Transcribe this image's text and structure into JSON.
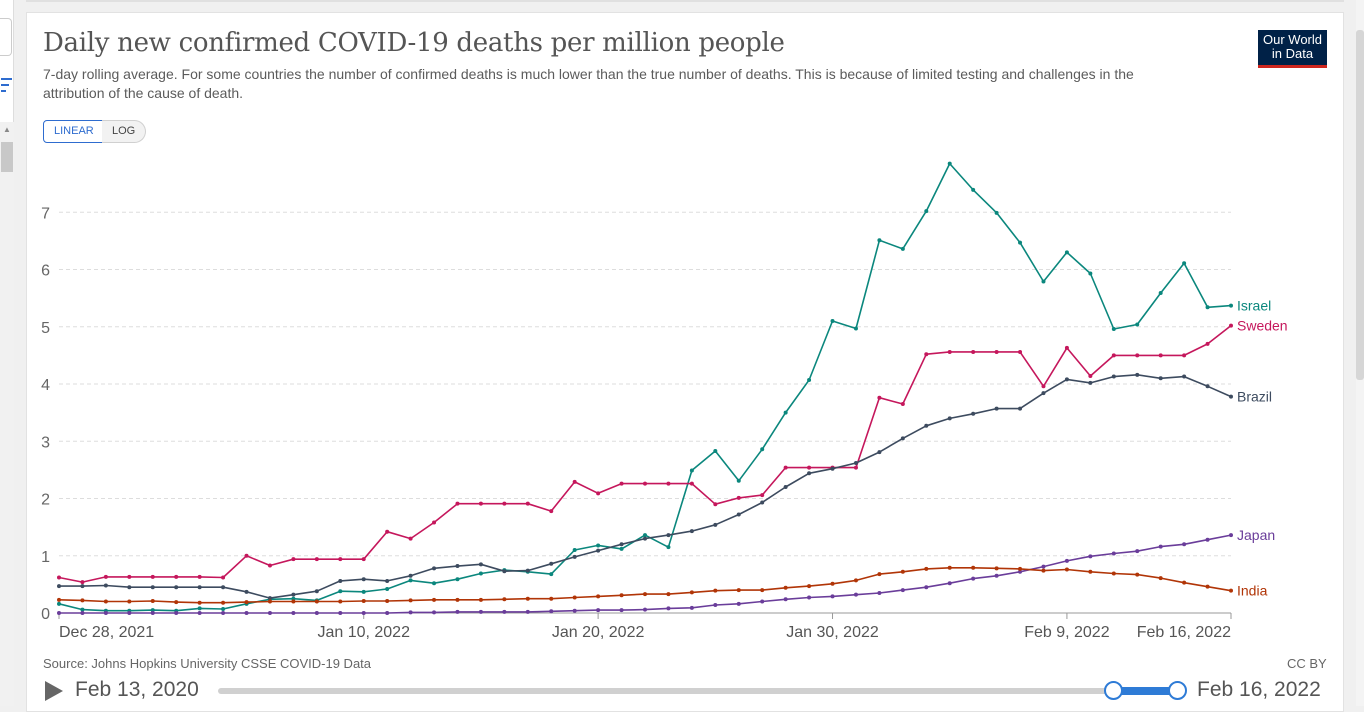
{
  "header": {
    "title": "Daily new confirmed COVID-19 deaths per million people",
    "subtitle": "7-day rolling average. For some countries the number of confirmed deaths is much lower than the true number of deaths. This is because of limited testing and challenges in the attribution of the cause of death.",
    "logo_line1": "Our World",
    "logo_line2": "in Data"
  },
  "scale_toggle": {
    "linear_label": "LINEAR",
    "log_label": "LOG",
    "selected": "LINEAR"
  },
  "footer": {
    "source": "Source: Johns Hopkins University CSSE COVID-19 Data",
    "license": "CC BY"
  },
  "timeline": {
    "start_label": "Feb 13, 2020",
    "end_label": "Feb 16, 2022",
    "selection_start_fraction": 0.932,
    "selection_end_fraction": 1.0
  },
  "colors": {
    "Israel": "#0b877d",
    "Sweden": "#c5175c",
    "Brazil": "#3d4b5f",
    "Japan": "#6a3d9a",
    "India": "#b13507",
    "accent": "#2e7bd6"
  },
  "chart_data": {
    "type": "line",
    "title": "Daily new confirmed COVID-19 deaths per million people",
    "xlabel": "",
    "ylabel": "",
    "ylim": [
      0,
      8
    ],
    "yticks": [
      "0",
      "1",
      "2",
      "3",
      "4",
      "5",
      "6",
      "7"
    ],
    "x_start": "Dec 28, 2021",
    "x_end": "Feb 16, 2022",
    "xticks": [
      {
        "label": "Dec 28, 2021",
        "day": 0
      },
      {
        "label": "Jan 10, 2022",
        "day": 13
      },
      {
        "label": "Jan 20, 2022",
        "day": 23
      },
      {
        "label": "Jan 30, 2022",
        "day": 33
      },
      {
        "label": "Feb 9, 2022",
        "day": 43
      },
      {
        "label": "Feb 16, 2022",
        "day": 50
      }
    ],
    "grid": true,
    "legend": "line-end labels",
    "series": [
      {
        "name": "Israel",
        "values": [
          0.16,
          0.06,
          0.04,
          0.04,
          0.05,
          0.04,
          0.08,
          0.07,
          0.16,
          0.24,
          0.25,
          0.22,
          0.38,
          0.37,
          0.42,
          0.57,
          0.52,
          0.59,
          0.69,
          0.75,
          0.72,
          0.68,
          1.1,
          1.18,
          1.12,
          1.36,
          1.15,
          2.49,
          2.83,
          2.31,
          2.86,
          3.5,
          4.07,
          5.1,
          4.97,
          6.51,
          6.36,
          7.02,
          7.85,
          7.39,
          6.99,
          6.47,
          5.79,
          6.3,
          5.93,
          4.96,
          5.04,
          5.59,
          6.11,
          5.34,
          5.37
        ]
      },
      {
        "name": "Sweden",
        "values": [
          0.62,
          0.54,
          0.63,
          0.63,
          0.63,
          0.63,
          0.63,
          0.62,
          1.0,
          0.83,
          0.94,
          0.94,
          0.94,
          0.94,
          1.42,
          1.3,
          1.58,
          1.91,
          1.91,
          1.91,
          1.91,
          1.78,
          2.29,
          2.09,
          2.26,
          2.26,
          2.26,
          2.26,
          1.9,
          2.01,
          2.06,
          2.54,
          2.54,
          2.54,
          2.54,
          3.76,
          3.65,
          4.52,
          4.56,
          4.56,
          4.56,
          4.56,
          3.96,
          4.63,
          4.14,
          4.5,
          4.5,
          4.5,
          4.5,
          4.7,
          5.02
        ]
      },
      {
        "name": "Brazil",
        "values": [
          0.47,
          0.47,
          0.48,
          0.45,
          0.45,
          0.45,
          0.45,
          0.45,
          0.37,
          0.26,
          0.32,
          0.38,
          0.56,
          0.59,
          0.56,
          0.65,
          0.78,
          0.82,
          0.85,
          0.73,
          0.74,
          0.86,
          0.98,
          1.09,
          1.2,
          1.3,
          1.36,
          1.43,
          1.54,
          1.72,
          1.93,
          2.2,
          2.44,
          2.52,
          2.62,
          2.81,
          3.05,
          3.27,
          3.4,
          3.48,
          3.57,
          3.57,
          3.84,
          4.08,
          4.02,
          4.13,
          4.16,
          4.1,
          4.13,
          3.96,
          3.78
        ]
      },
      {
        "name": "Japan",
        "values": [
          0,
          0,
          0,
          0,
          0,
          0,
          0,
          0,
          0,
          0,
          0,
          0,
          0,
          0,
          0,
          0.01,
          0.01,
          0.02,
          0.02,
          0.02,
          0.02,
          0.03,
          0.04,
          0.05,
          0.05,
          0.06,
          0.08,
          0.09,
          0.14,
          0.16,
          0.2,
          0.24,
          0.27,
          0.29,
          0.32,
          0.35,
          0.4,
          0.45,
          0.52,
          0.6,
          0.65,
          0.72,
          0.81,
          0.91,
          0.99,
          1.04,
          1.08,
          1.16,
          1.2,
          1.28,
          1.36
        ]
      },
      {
        "name": "India",
        "values": [
          0.23,
          0.22,
          0.2,
          0.2,
          0.21,
          0.19,
          0.18,
          0.18,
          0.19,
          0.2,
          0.2,
          0.2,
          0.2,
          0.21,
          0.21,
          0.22,
          0.23,
          0.23,
          0.23,
          0.24,
          0.25,
          0.25,
          0.27,
          0.29,
          0.31,
          0.33,
          0.33,
          0.36,
          0.39,
          0.4,
          0.4,
          0.44,
          0.47,
          0.51,
          0.57,
          0.68,
          0.72,
          0.77,
          0.79,
          0.79,
          0.78,
          0.77,
          0.74,
          0.76,
          0.72,
          0.69,
          0.67,
          0.61,
          0.53,
          0.46,
          0.39
        ]
      }
    ]
  }
}
